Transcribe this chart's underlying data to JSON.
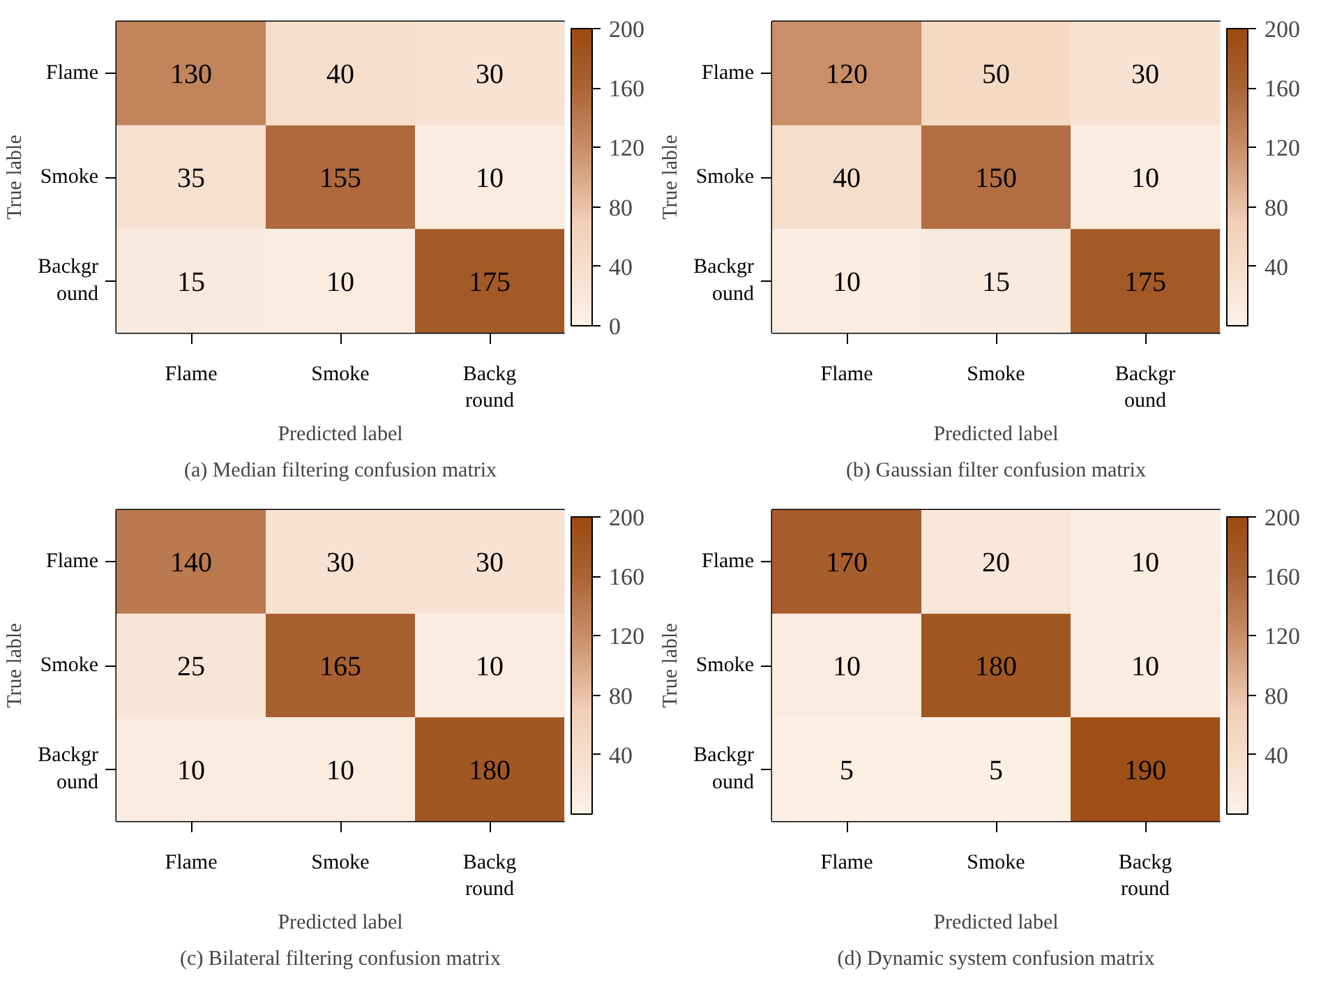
{
  "chart_data": [
    {
      "type": "heatmap",
      "categories": [
        "Flame",
        "Smoke",
        "Backg\nround"
      ],
      "y_categories": [
        "Flame",
        "Smoke",
        "Backgr\nound"
      ],
      "cells": [
        [
          130,
          40,
          30
        ],
        [
          35,
          155,
          10
        ],
        [
          15,
          10,
          175
        ]
      ],
      "clim": [
        0,
        200
      ],
      "cticks": [
        0,
        40,
        80,
        120,
        160,
        200
      ],
      "xlabel": "Predicted label",
      "ylabel": "True lable",
      "annotations": [
        "(a) Median filtering confusion matrix"
      ],
      "data_labels": true
    },
    {
      "type": "heatmap",
      "categories": [
        "Flame",
        "Smoke",
        "Backgr\nound"
      ],
      "y_categories": [
        "Flame",
        "Smoke",
        "Backgr\nound"
      ],
      "cells": [
        [
          120,
          50,
          30
        ],
        [
          40,
          150,
          10
        ],
        [
          10,
          15,
          175
        ]
      ],
      "clim": [
        0,
        200
      ],
      "cticks": [
        40,
        80,
        120,
        160,
        200
      ],
      "xlabel": "Predicted label",
      "ylabel": "True lable",
      "annotations": [
        "(b) Gaussian filter confusion matrix"
      ],
      "data_labels": true
    },
    {
      "type": "heatmap",
      "categories": [
        "Flame",
        "Smoke",
        "Backg\nround"
      ],
      "y_categories": [
        "Flame",
        "Smoke",
        "Backgr\nound"
      ],
      "cells": [
        [
          140,
          30,
          30
        ],
        [
          25,
          165,
          10
        ],
        [
          10,
          10,
          180
        ]
      ],
      "clim": [
        0,
        200
      ],
      "cticks": [
        40,
        80,
        120,
        160,
        200
      ],
      "xlabel": "Predicted label",
      "ylabel": "True lable",
      "annotations": [
        "(c) Bilateral filtering confusion matrix"
      ],
      "data_labels": true
    },
    {
      "type": "heatmap",
      "categories": [
        "Flame",
        "Smoke",
        "Backg\nround"
      ],
      "y_categories": [
        "Flame",
        "Smoke",
        "Backgr\nound"
      ],
      "cells": [
        [
          170,
          20,
          10
        ],
        [
          10,
          180,
          10
        ],
        [
          5,
          5,
          190
        ]
      ],
      "clim": [
        0,
        200
      ],
      "cticks": [
        40,
        80,
        120,
        160,
        200
      ],
      "xlabel": "Predicted label",
      "ylabel": "True lable",
      "annotations": [
        "(d) Dynamic system confusion matrix"
      ],
      "data_labels": true
    }
  ]
}
